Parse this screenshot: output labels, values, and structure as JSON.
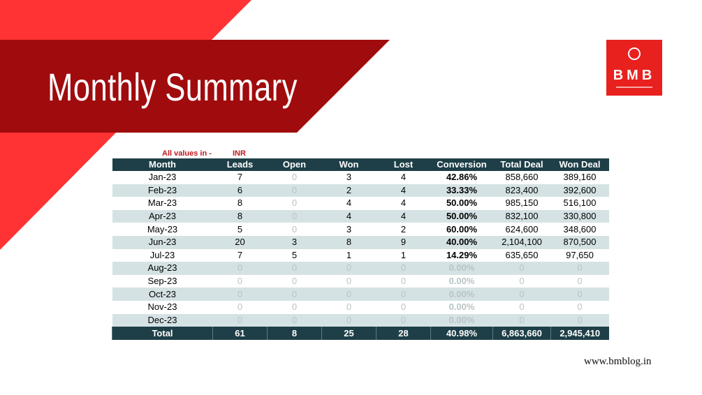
{
  "header": {
    "title": "Monthly Summary",
    "logo": "BMB",
    "note_label": "All values in -",
    "note_unit": "INR"
  },
  "table": {
    "columns": [
      "Month",
      "Leads",
      "Open",
      "Won",
      "Lost",
      "Conversion",
      "Total Deal",
      "Won Deal"
    ],
    "rows": [
      [
        "Jan-23",
        "7",
        "0",
        "3",
        "4",
        "42.86%",
        "858,660",
        "389,160"
      ],
      [
        "Feb-23",
        "6",
        "0",
        "2",
        "4",
        "33.33%",
        "823,400",
        "392,600"
      ],
      [
        "Mar-23",
        "8",
        "0",
        "4",
        "4",
        "50.00%",
        "985,150",
        "516,100"
      ],
      [
        "Apr-23",
        "8",
        "0",
        "4",
        "4",
        "50.00%",
        "832,100",
        "330,800"
      ],
      [
        "May-23",
        "5",
        "0",
        "3",
        "2",
        "60.00%",
        "624,600",
        "348,600"
      ],
      [
        "Jun-23",
        "20",
        "3",
        "8",
        "9",
        "40.00%",
        "2,104,100",
        "870,500"
      ],
      [
        "Jul-23",
        "7",
        "5",
        "1",
        "1",
        "14.29%",
        "635,650",
        "97,650"
      ],
      [
        "Aug-23",
        "0",
        "0",
        "0",
        "0",
        "0.00%",
        "0",
        "0"
      ],
      [
        "Sep-23",
        "0",
        "0",
        "0",
        "0",
        "0.00%",
        "0",
        "0"
      ],
      [
        "Oct-23",
        "0",
        "0",
        "0",
        "0",
        "0.00%",
        "0",
        "0"
      ],
      [
        "Nov-23",
        "0",
        "0",
        "0",
        "0",
        "0.00%",
        "0",
        "0"
      ],
      [
        "Dec-23",
        "0",
        "0",
        "0",
        "0",
        "0.00%",
        "0",
        "0"
      ]
    ],
    "total": [
      "Total",
      "61",
      "8",
      "25",
      "28",
      "40.98%",
      "6,863,660",
      "2,945,410"
    ]
  },
  "footer": {
    "url": "www.bmblog.in"
  }
}
